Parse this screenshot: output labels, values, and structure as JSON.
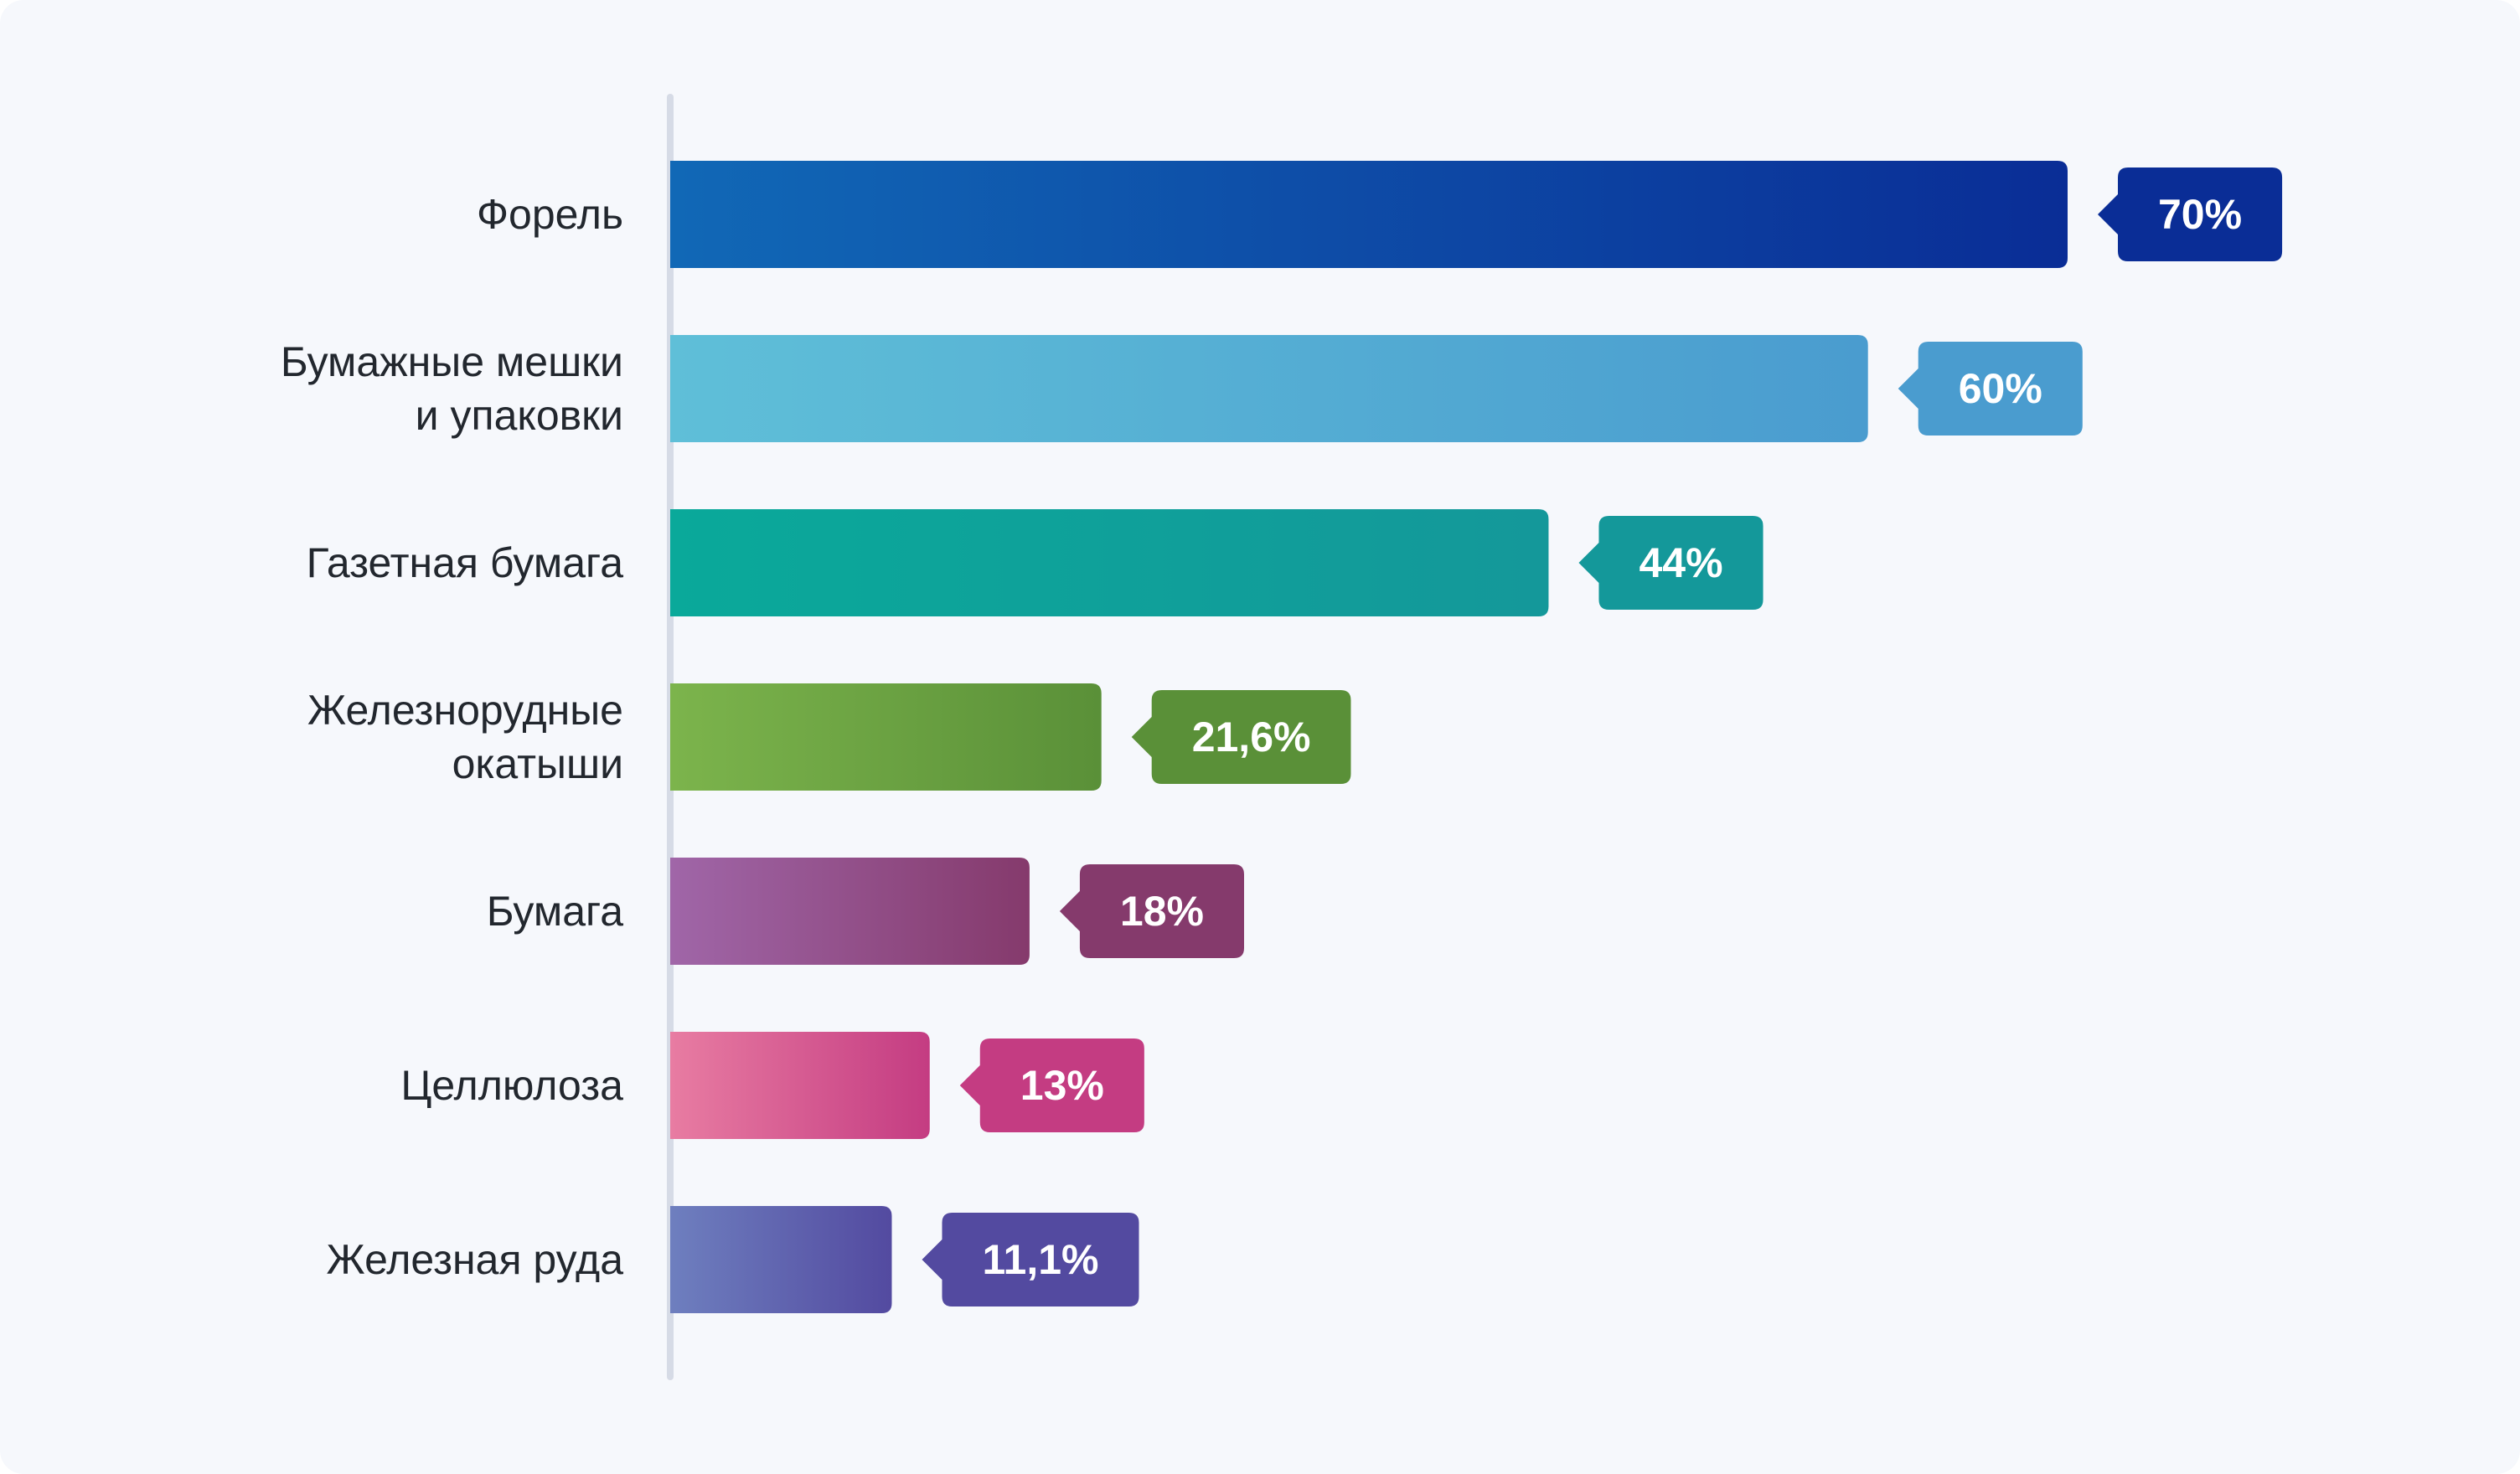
{
  "chart_data": {
    "type": "bar",
    "orientation": "horizontal",
    "categories": [
      [
        "Форель"
      ],
      [
        "Бумажные мешки",
        "и упаковки"
      ],
      [
        "Газетная бумага"
      ],
      [
        "Железнорудные",
        "окатыши"
      ],
      [
        "Бумага"
      ],
      [
        "Целлюлоза"
      ],
      [
        "Железная руда"
      ]
    ],
    "values": [
      70,
      60,
      44,
      21.6,
      18,
      13,
      11.1
    ],
    "value_labels": [
      "70%",
      "60%",
      "44%",
      "21,6%",
      "18%",
      "13%",
      "11,1%"
    ],
    "xlim": [
      0,
      70
    ],
    "grid": false,
    "legend": "none",
    "colors": [
      {
        "from": "#1168b6",
        "to": "#0a2d96"
      },
      {
        "from": "#5fbfd8",
        "to": "#4a9ccf"
      },
      {
        "from": "#0aa99a",
        "to": "#14989a"
      },
      {
        "from": "#7cb44c",
        "to": "#5a9038"
      },
      {
        "from": "#a066a8",
        "to": "#853a6c"
      },
      {
        "from": "#e87ca2",
        "to": "#c43c82"
      },
      {
        "from": "#6e7fbf",
        "to": "#534aa0"
      }
    ],
    "label_colors": [
      "#0a2d96",
      "#4a9ccf",
      "#14989a",
      "#5a9038",
      "#853a6c",
      "#c43c82",
      "#534aa0"
    ],
    "axis_color": "#d6dbe6"
  }
}
